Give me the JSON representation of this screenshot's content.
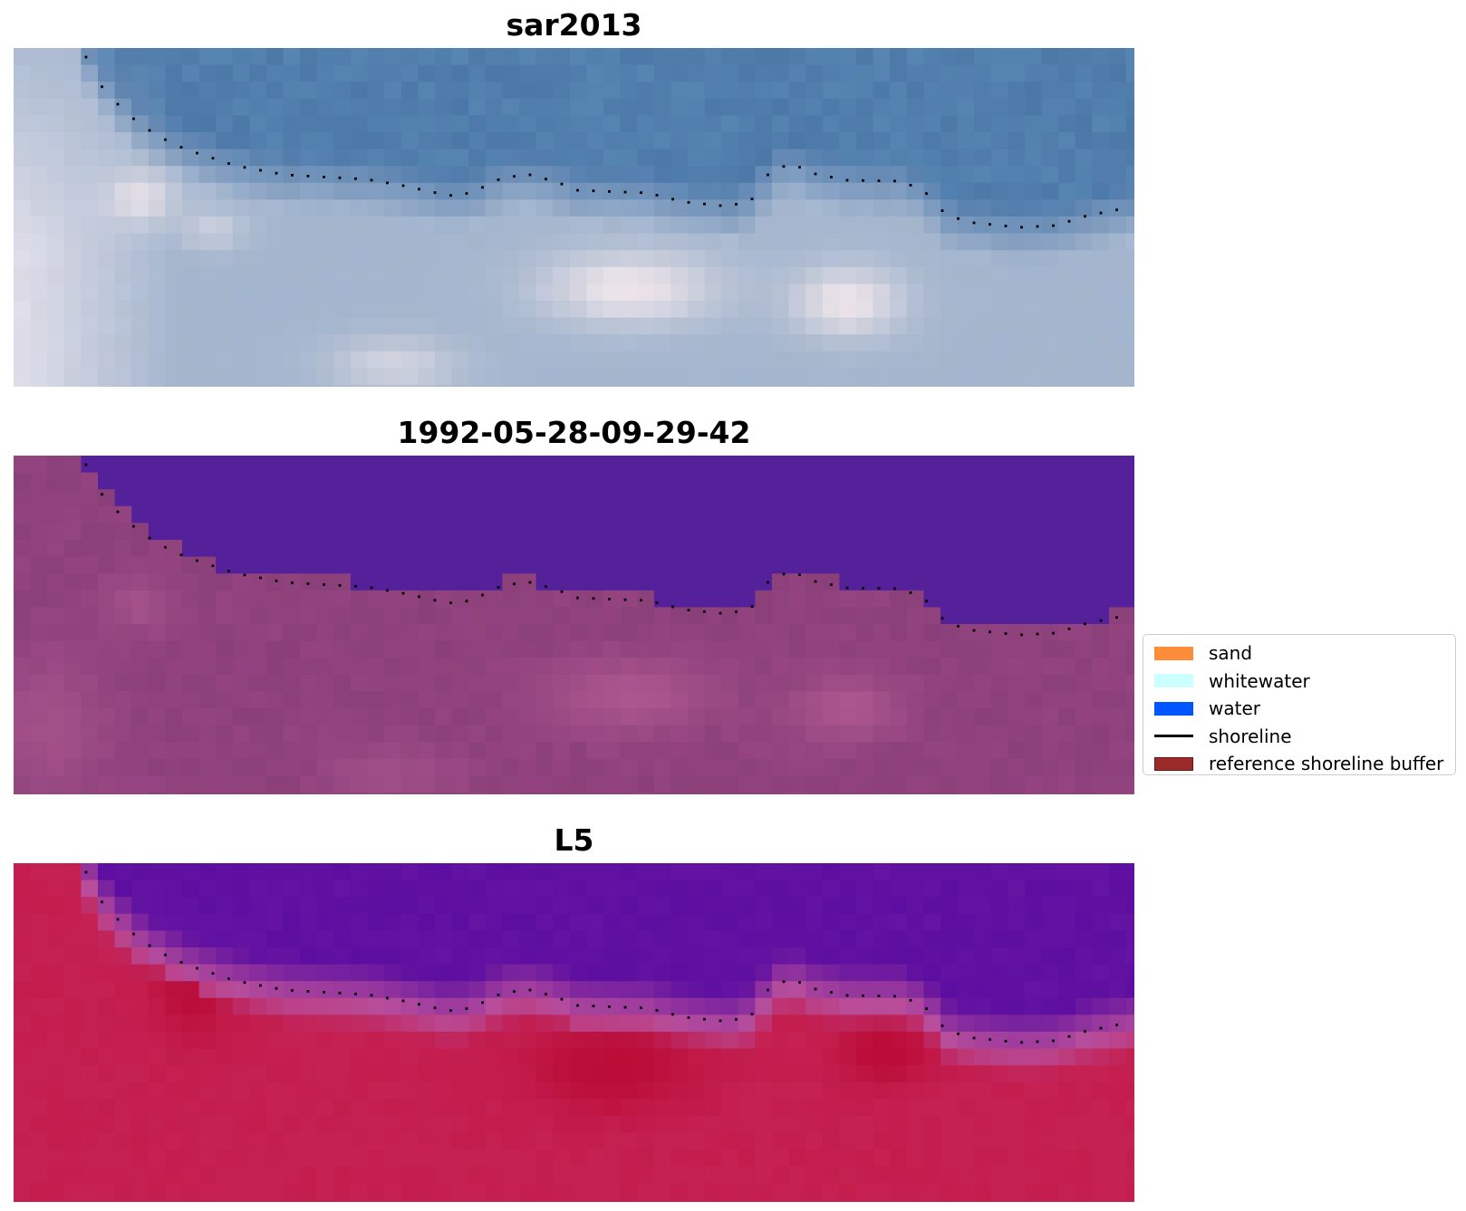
{
  "panels": [
    {
      "title": "sar2013",
      "raster": "rgb-composite",
      "colors": {
        "water": "#4c78a8",
        "shore": "#a4b5cc",
        "foam": "#e8e2ea",
        "bright": "#f4e8ea"
      }
    },
    {
      "title": "1992-05-28-09-29-42",
      "raster": "classification-overlay",
      "colors": {
        "water": "#54219a",
        "land": "#944480",
        "land_light": "#b35c92",
        "land_dark": "#833c74"
      }
    },
    {
      "title": "L5",
      "raster": "index-map",
      "colors": {
        "water": "#5c0ea0",
        "transition": "#b84e9c",
        "land": "#c31d4e",
        "land_dark": "#b90a34"
      }
    }
  ],
  "legend": {
    "entries": [
      {
        "label": "sand",
        "color": "#ff8c3a",
        "kind": "patch"
      },
      {
        "label": "whitewater",
        "color": "#ccffff",
        "kind": "patch"
      },
      {
        "label": "water",
        "color": "#0055ff",
        "kind": "patch"
      },
      {
        "label": "shoreline",
        "color": "#000000",
        "kind": "line"
      },
      {
        "label": "reference shoreline buffer",
        "color": "#9b2a2a",
        "edge": "#6e1414",
        "kind": "patch"
      }
    ]
  }
}
